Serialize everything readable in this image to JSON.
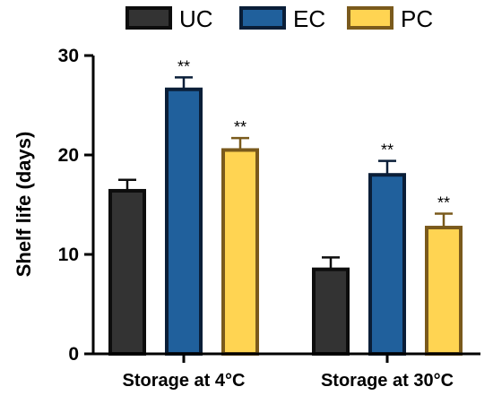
{
  "chart_data": {
    "type": "bar",
    "title": "",
    "xlabel": "",
    "ylabel": "Shelf life (days)",
    "ylim": [
      0,
      30
    ],
    "yticks": [
      0,
      10,
      20,
      30
    ],
    "categories": [
      "Storage at 4°C",
      "Storage at 30°C"
    ],
    "legend_position": "top",
    "grid": false,
    "series": [
      {
        "name": "UC",
        "fill": "#333333",
        "stroke": "#0d0d0d",
        "values": [
          16.4,
          8.5
        ],
        "errors": [
          1.1,
          1.2
        ],
        "annotations": [
          "",
          ""
        ]
      },
      {
        "name": "EC",
        "fill": "#20609c",
        "stroke": "#0a1e38",
        "values": [
          26.6,
          18.0
        ],
        "errors": [
          1.2,
          1.4
        ],
        "annotations": [
          "**",
          "**"
        ]
      },
      {
        "name": "PC",
        "fill": "#ffd452",
        "stroke": "#7a5a1c",
        "values": [
          20.5,
          12.7
        ],
        "errors": [
          1.2,
          1.4
        ],
        "annotations": [
          "**",
          "**"
        ]
      }
    ]
  }
}
